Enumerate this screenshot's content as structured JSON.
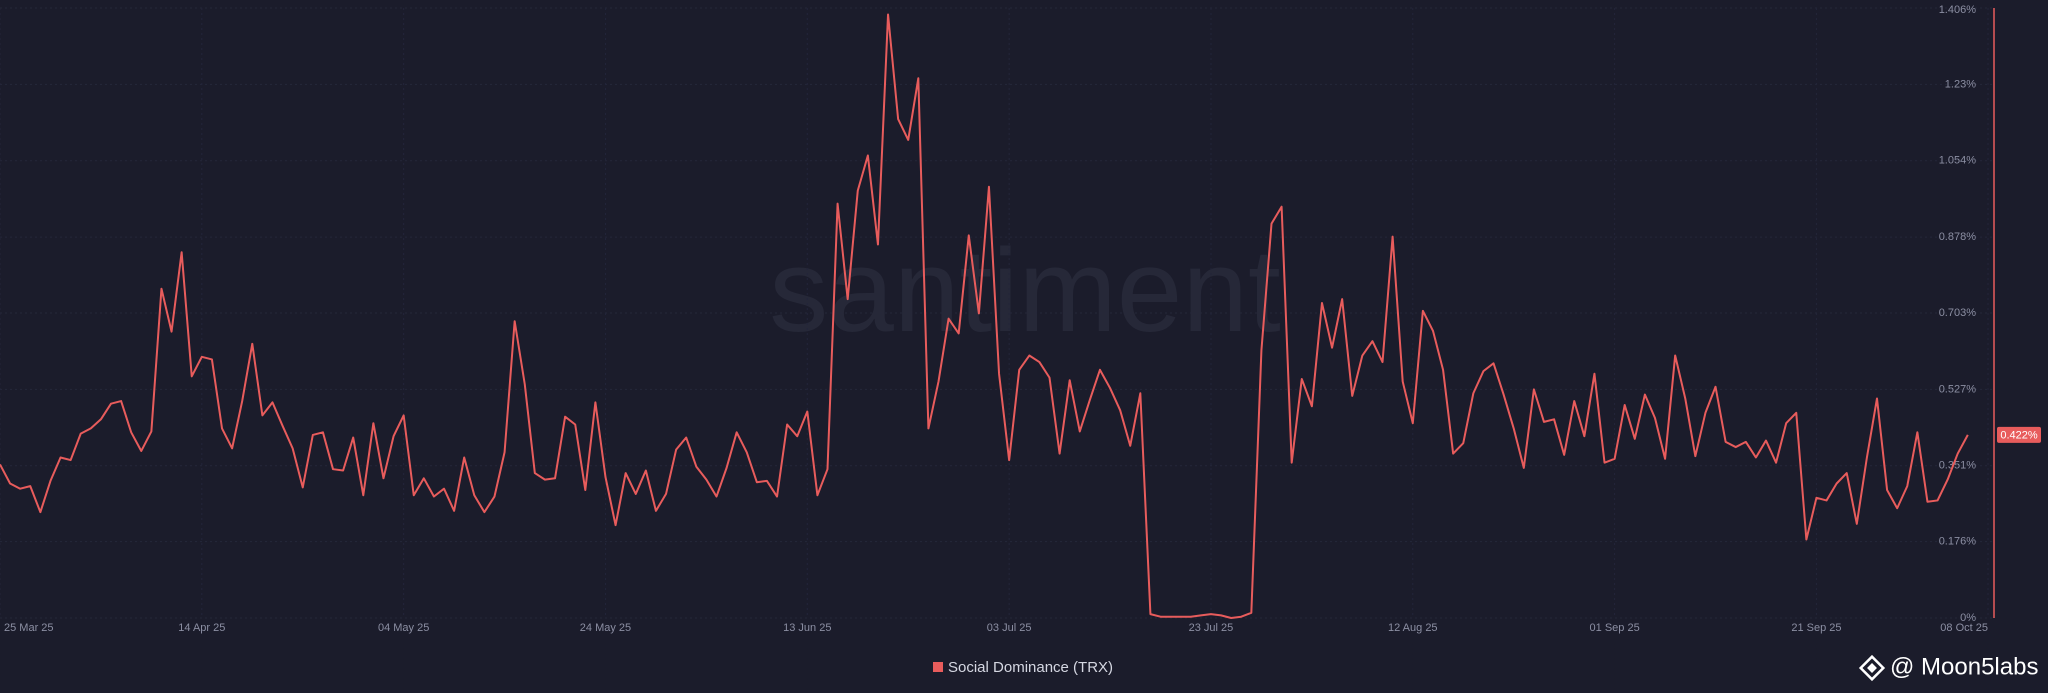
{
  "chart_data": {
    "type": "line",
    "watermark": "santiment",
    "credit": "@ Moon5labs",
    "x": [
      "2025-03-25",
      "2025-03-26",
      "2025-03-27",
      "2025-03-28",
      "2025-03-29",
      "2025-03-30",
      "2025-03-31",
      "2025-04-01",
      "2025-04-02",
      "2025-04-03",
      "2025-04-04",
      "2025-04-05",
      "2025-04-06",
      "2025-04-07",
      "2025-04-08",
      "2025-04-09",
      "2025-04-10",
      "2025-04-11",
      "2025-04-12",
      "2025-04-13",
      "2025-04-14",
      "2025-04-15",
      "2025-04-16",
      "2025-04-17",
      "2025-04-18",
      "2025-04-19",
      "2025-04-20",
      "2025-04-21",
      "2025-04-22",
      "2025-04-23",
      "2025-04-24",
      "2025-04-25",
      "2025-04-26",
      "2025-04-27",
      "2025-04-28",
      "2025-04-29",
      "2025-04-30",
      "2025-05-01",
      "2025-05-02",
      "2025-05-03",
      "2025-05-04",
      "2025-05-05",
      "2025-05-06",
      "2025-05-07",
      "2025-05-08",
      "2025-05-09",
      "2025-05-10",
      "2025-05-11",
      "2025-05-12",
      "2025-05-13",
      "2025-05-14",
      "2025-05-15",
      "2025-05-16",
      "2025-05-17",
      "2025-05-18",
      "2025-05-19",
      "2025-05-20",
      "2025-05-21",
      "2025-05-22",
      "2025-05-23",
      "2025-05-24",
      "2025-05-25",
      "2025-05-26",
      "2025-05-27",
      "2025-05-28",
      "2025-05-29",
      "2025-05-30",
      "2025-05-31",
      "2025-06-01",
      "2025-06-02",
      "2025-06-03",
      "2025-06-04",
      "2025-06-05",
      "2025-06-06",
      "2025-06-07",
      "2025-06-08",
      "2025-06-09",
      "2025-06-10",
      "2025-06-11",
      "2025-06-12",
      "2025-06-13",
      "2025-06-14",
      "2025-06-15",
      "2025-06-16",
      "2025-06-17",
      "2025-06-18",
      "2025-06-19",
      "2025-06-20",
      "2025-06-21",
      "2025-06-22",
      "2025-06-23",
      "2025-06-24",
      "2025-06-25",
      "2025-06-26",
      "2025-06-27",
      "2025-06-28",
      "2025-06-29",
      "2025-06-30",
      "2025-07-01",
      "2025-07-02",
      "2025-07-03",
      "2025-07-04",
      "2025-07-05",
      "2025-07-06",
      "2025-07-07",
      "2025-07-08",
      "2025-07-09",
      "2025-07-10",
      "2025-07-11",
      "2025-07-12",
      "2025-07-13",
      "2025-07-14",
      "2025-07-15",
      "2025-07-16",
      "2025-07-17",
      "2025-07-18",
      "2025-07-19",
      "2025-07-20",
      "2025-07-21",
      "2025-07-22",
      "2025-07-23",
      "2025-07-24",
      "2025-07-25",
      "2025-07-26",
      "2025-07-27",
      "2025-07-28",
      "2025-07-29",
      "2025-07-30",
      "2025-07-31",
      "2025-08-01",
      "2025-08-02",
      "2025-08-03",
      "2025-08-04",
      "2025-08-05",
      "2025-08-06",
      "2025-08-07",
      "2025-08-08",
      "2025-08-09",
      "2025-08-10",
      "2025-08-11",
      "2025-08-12",
      "2025-08-13",
      "2025-08-14",
      "2025-08-15",
      "2025-08-16",
      "2025-08-17",
      "2025-08-18",
      "2025-08-19",
      "2025-08-20",
      "2025-08-21",
      "2025-08-22",
      "2025-08-23",
      "2025-08-24",
      "2025-08-25",
      "2025-08-26",
      "2025-08-27",
      "2025-08-28",
      "2025-08-29",
      "2025-08-30",
      "2025-08-31",
      "2025-09-01",
      "2025-09-02",
      "2025-09-03",
      "2025-09-04",
      "2025-09-05",
      "2025-09-06",
      "2025-09-07",
      "2025-09-08",
      "2025-09-09",
      "2025-09-10",
      "2025-09-11",
      "2025-09-12",
      "2025-09-13",
      "2025-09-14",
      "2025-09-15",
      "2025-09-16",
      "2025-09-17",
      "2025-09-18",
      "2025-09-19",
      "2025-09-20",
      "2025-09-21",
      "2025-09-22",
      "2025-09-23",
      "2025-09-24",
      "2025-09-25",
      "2025-09-26",
      "2025-09-27",
      "2025-09-28",
      "2025-09-29",
      "2025-09-30",
      "2025-10-01",
      "2025-10-02",
      "2025-10-03",
      "2025-10-04",
      "2025-10-05",
      "2025-10-06"
    ],
    "series": [
      {
        "name": "Social Dominance (TRX)",
        "color": "#e85c5c",
        "values": [
          0.354,
          0.31,
          0.298,
          0.304,
          0.244,
          0.316,
          0.37,
          0.364,
          0.425,
          0.437,
          0.458,
          0.494,
          0.5,
          0.428,
          0.385,
          0.43,
          0.759,
          0.66,
          0.843,
          0.557,
          0.602,
          0.596,
          0.437,
          0.391,
          0.5,
          0.632,
          0.467,
          0.497,
          0.443,
          0.391,
          0.301,
          0.422,
          0.428,
          0.343,
          0.34,
          0.416,
          0.283,
          0.449,
          0.322,
          0.419,
          0.467,
          0.283,
          0.322,
          0.28,
          0.298,
          0.247,
          0.37,
          0.283,
          0.244,
          0.28,
          0.382,
          0.684,
          0.539,
          0.334,
          0.319,
          0.322,
          0.464,
          0.446,
          0.295,
          0.497,
          0.325,
          0.214,
          0.334,
          0.286,
          0.34,
          0.247,
          0.286,
          0.388,
          0.416,
          0.349,
          0.319,
          0.28,
          0.346,
          0.428,
          0.382,
          0.313,
          0.316,
          0.28,
          0.446,
          0.419,
          0.476,
          0.283,
          0.343,
          0.955,
          0.735,
          0.985,
          1.066,
          0.861,
          1.391,
          1.15,
          1.102,
          1.244,
          0.437,
          0.545,
          0.69,
          0.656,
          0.882,
          0.702,
          0.994,
          0.563,
          0.364,
          0.572,
          0.605,
          0.59,
          0.554,
          0.379,
          0.548,
          0.43,
          0.503,
          0.572,
          0.53,
          0.479,
          0.397,
          0.518,
          0.009,
          0.003,
          0.003,
          0.003,
          0.003,
          0.006,
          0.009,
          0.006,
          0,
          0.003,
          0.012,
          0.617,
          0.909,
          0.948,
          0.358,
          0.551,
          0.488,
          0.726,
          0.623,
          0.735,
          0.512,
          0.605,
          0.638,
          0.59,
          0.879,
          0.545,
          0.449,
          0.708,
          0.662,
          0.572,
          0.379,
          0.403,
          0.518,
          0.569,
          0.587,
          0.515,
          0.437,
          0.346,
          0.527,
          0.452,
          0.458,
          0.376,
          0.5,
          0.419,
          0.563,
          0.358,
          0.367,
          0.491,
          0.413,
          0.515,
          0.461,
          0.367,
          0.605,
          0.506,
          0.373,
          0.473,
          0.533,
          0.406,
          0.394,
          0.406,
          0.37,
          0.409,
          0.358,
          0.449,
          0.473,
          0.181,
          0.277,
          0.271,
          0.31,
          0.334,
          0.217,
          0.37,
          0.506,
          0.295,
          0.253,
          0.304,
          0.428,
          0.268,
          0.271,
          0.319,
          0.379,
          0.422
        ]
      }
    ],
    "current_value": {
      "value": 0.422,
      "label": "0.422%"
    },
    "xlim": [
      "2025-03-25",
      "2025-10-08"
    ],
    "xticks": [
      {
        "value": "2025-03-25",
        "label": "25 Mar 25"
      },
      {
        "value": "2025-04-14",
        "label": "14 Apr 25"
      },
      {
        "value": "2025-05-04",
        "label": "04 May 25"
      },
      {
        "value": "2025-05-24",
        "label": "24 May 25"
      },
      {
        "value": "2025-06-13",
        "label": "13 Jun 25"
      },
      {
        "value": "2025-07-03",
        "label": "03 Jul 25"
      },
      {
        "value": "2025-07-23",
        "label": "23 Jul 25"
      },
      {
        "value": "2025-08-12",
        "label": "12 Aug 25"
      },
      {
        "value": "2025-09-01",
        "label": "01 Sep 25"
      },
      {
        "value": "2025-09-21",
        "label": "21 Sep 25"
      },
      {
        "value": "2025-10-08",
        "label": "08 Oct 25"
      }
    ],
    "ylim": [
      0,
      1.406
    ],
    "yticks": [
      {
        "value": 0,
        "label": "0%"
      },
      {
        "value": 0.176,
        "label": "0.176%"
      },
      {
        "value": 0.351,
        "label": "0.351%"
      },
      {
        "value": 0.527,
        "label": "0.527%"
      },
      {
        "value": 0.703,
        "label": "0.703%"
      },
      {
        "value": 0.878,
        "label": "0.878%"
      },
      {
        "value": 1.054,
        "label": "1.054%"
      },
      {
        "value": 1.23,
        "label": "1.23%"
      },
      {
        "value": 1.406,
        "label": "1.406%"
      }
    ],
    "grid": true,
    "legend": "bottom"
  }
}
